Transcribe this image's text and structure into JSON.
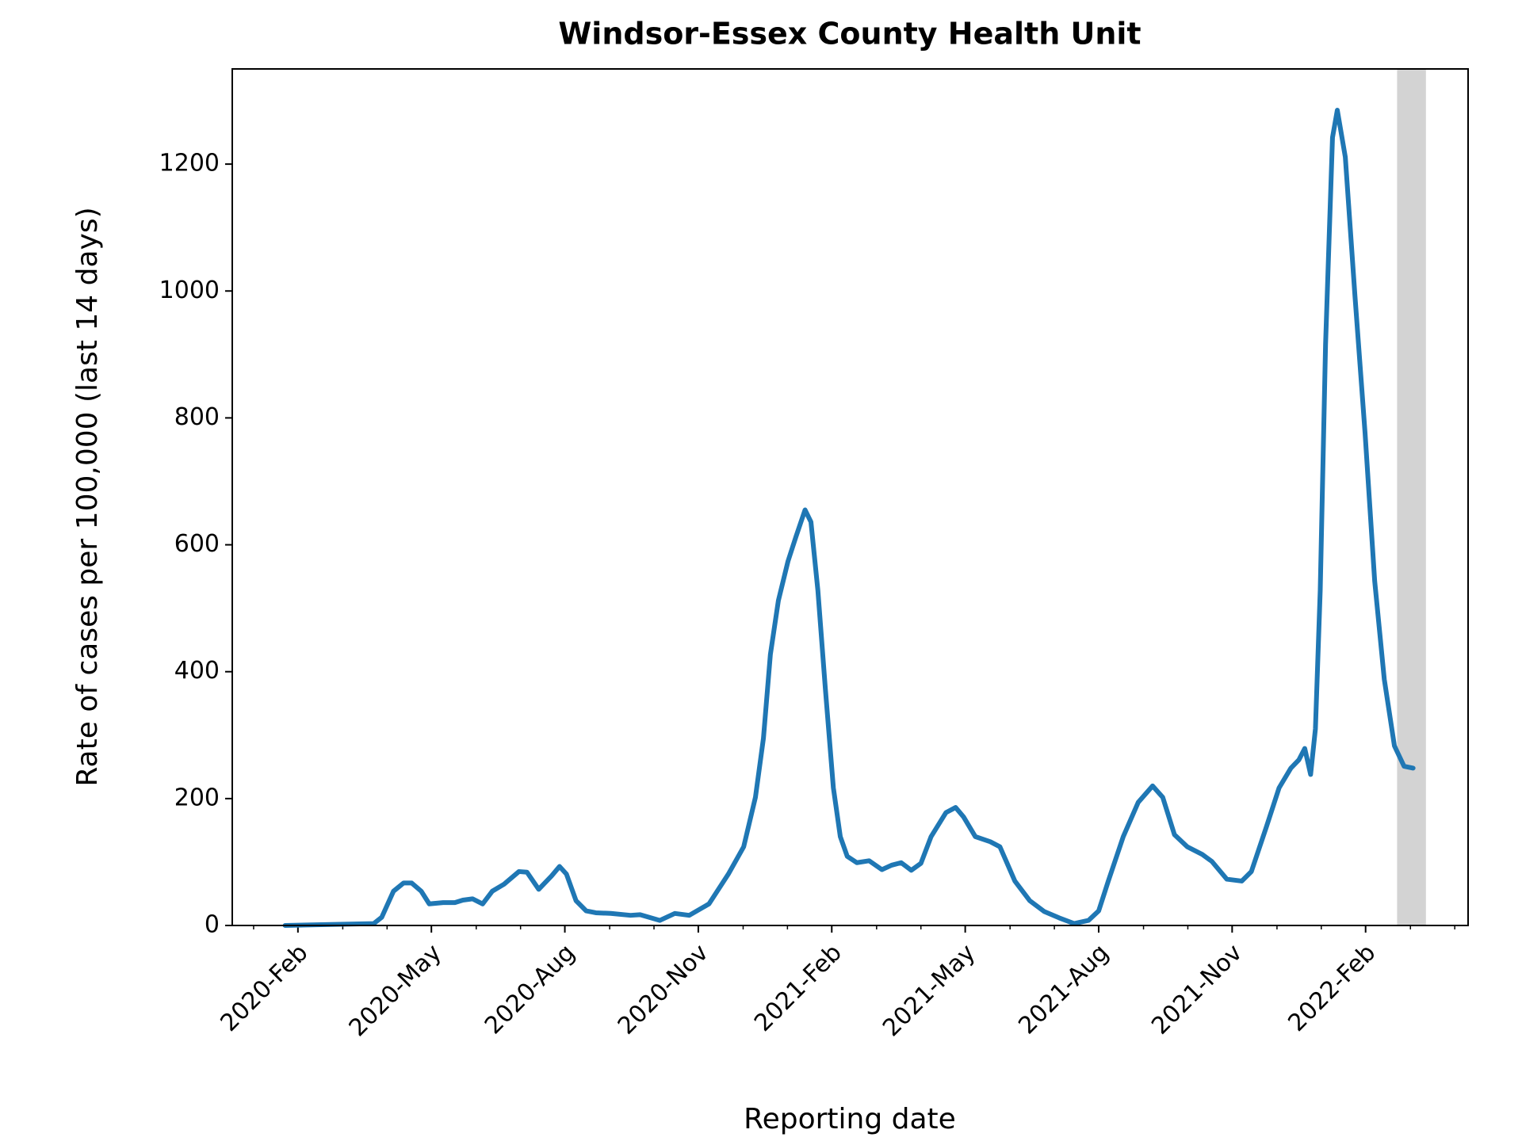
{
  "chart_data": {
    "type": "line",
    "title": "Windsor-Essex County Health Unit",
    "x_label": "Reporting date",
    "y_label": "Rate of cases per 100,000 (last 14 days)",
    "color": "#1f77b4",
    "x": [
      2020.059,
      2020.225,
      2020.24,
      2020.262,
      2020.281,
      2020.296,
      2020.314,
      2020.329,
      2020.355,
      2020.377,
      2020.392,
      2020.41,
      2020.429,
      2020.447,
      2020.469,
      2020.497,
      2020.512,
      2020.534,
      2020.558,
      2020.573,
      2020.586,
      2020.604,
      2020.623,
      2020.641,
      2020.669,
      2020.706,
      2020.724,
      2020.761,
      2020.789,
      2020.816,
      2020.853,
      2020.89,
      2020.918,
      2020.94,
      2020.955,
      2020.968,
      2020.983,
      2021.001,
      2021.016,
      2021.033,
      2021.044,
      2021.057,
      2021.071,
      2021.086,
      2021.099,
      2021.112,
      2021.13,
      2021.153,
      2021.177,
      2021.195,
      2021.213,
      2021.232,
      2021.25,
      2021.269,
      2021.297,
      2021.315,
      2021.33,
      2021.352,
      2021.38,
      2021.398,
      2021.426,
      2021.454,
      2021.481,
      2021.509,
      2021.537,
      2021.564,
      2021.583,
      2021.601,
      2021.629,
      2021.657,
      2021.684,
      2021.703,
      2021.725,
      2021.749,
      2021.777,
      2021.795,
      2021.823,
      2021.851,
      2021.869,
      2021.897,
      2021.921,
      2021.943,
      2021.958,
      2021.969,
      2021.98,
      2021.989,
      2021.998,
      2022.008,
      2022.021,
      2022.03,
      2022.045,
      2022.063,
      2022.082,
      2022.1,
      2022.118,
      2022.137,
      2022.155,
      2022.172
    ],
    "values": [
      0,
      3,
      13,
      54,
      67,
      67,
      54,
      34,
      36,
      36,
      40,
      42,
      34,
      54,
      65,
      85,
      84,
      57,
      78,
      93,
      81,
      39,
      23,
      20,
      19,
      16,
      17,
      8,
      19,
      16,
      34,
      82,
      124,
      202,
      295,
      427,
      512,
      574,
      613,
      655,
      636,
      528,
      373,
      217,
      140,
      109,
      99,
      102,
      88,
      95,
      99,
      87,
      98,
      140,
      178,
      186,
      171,
      140,
      132,
      124,
      70,
      39,
      22,
      12,
      3,
      8,
      23,
      70,
      140,
      194,
      220,
      202,
      143,
      124,
      112,
      101,
      73,
      70,
      85,
      155,
      217,
      248,
      261,
      279,
      238,
      310,
      528,
      916,
      1242,
      1285,
      1211,
      993,
      776,
      543,
      388,
      283,
      251,
      248
    ],
    "xlim": [
      2019.96,
      2022.275
    ],
    "ylim": [
      0,
      1350
    ],
    "xticks": [
      {
        "value": 2020.083,
        "label": "2020-Feb"
      },
      {
        "value": 2020.333,
        "label": "2020-May"
      },
      {
        "value": 2020.583,
        "label": "2020-Aug"
      },
      {
        "value": 2020.833,
        "label": "2020-Nov"
      },
      {
        "value": 2021.083,
        "label": "2021-Feb"
      },
      {
        "value": 2021.333,
        "label": "2021-May"
      },
      {
        "value": 2021.583,
        "label": "2021-Aug"
      },
      {
        "value": 2021.833,
        "label": "2021-Nov"
      },
      {
        "value": 2022.083,
        "label": "2022-Feb"
      }
    ],
    "xminorticks": [
      2020.0,
      2020.167,
      2020.25,
      2020.417,
      2020.5,
      2020.667,
      2020.75,
      2020.917,
      2021.0,
      2021.167,
      2021.25,
      2021.417,
      2021.5,
      2021.667,
      2021.75,
      2021.917,
      2022.0,
      2022.167,
      2022.25
    ],
    "yticks": [
      0,
      200,
      400,
      600,
      800,
      1000,
      1200
    ],
    "shaded_span": [
      2022.142,
      2022.196
    ],
    "shaded_color": "#d3d3d3"
  }
}
